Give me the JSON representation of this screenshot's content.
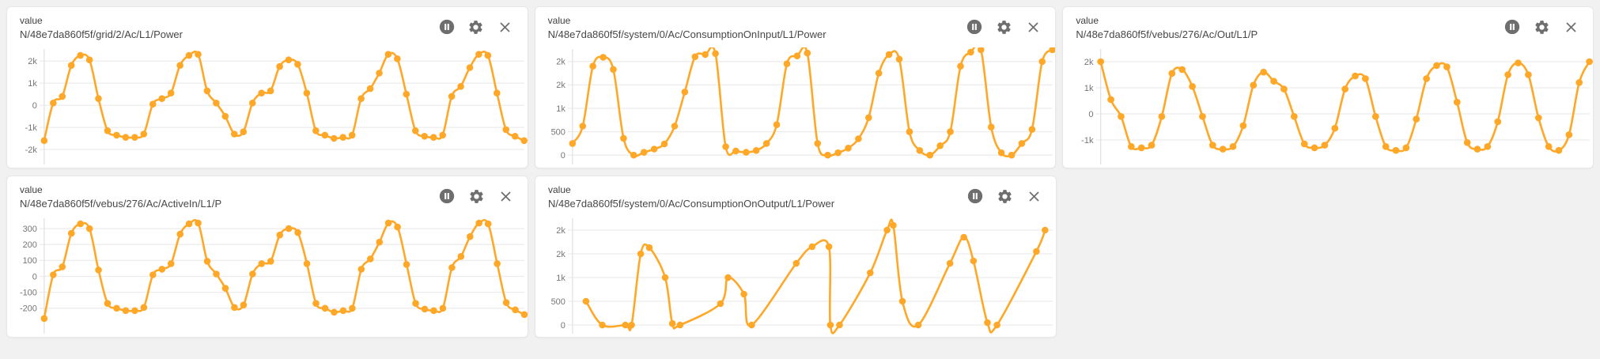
{
  "page": {
    "background": "#f1f1f2"
  },
  "colors": {
    "line": "#FFA726",
    "point": "#FFA726",
    "grid": "#ececec",
    "axis": "#e2e2e4",
    "tick_label": "#757575",
    "icon": "#6e6e6e",
    "card_bg": "#ffffff",
    "card_border": "#e7e7e8"
  },
  "icons": {
    "pause_label": "pause",
    "settings_label": "settings",
    "close_label": "close"
  },
  "panels": [
    {
      "title": "value",
      "topic": "N/48e7da860f5f/grid/2/Ac/L1/Power"
    },
    {
      "title": "value",
      "topic": "N/48e7da860f5f/system/0/Ac/ConsumptionOnInput/L1/Power"
    },
    {
      "title": "value",
      "topic": "N/48e7da860f5f/vebus/276/Ac/Out/L1/P"
    },
    {
      "title": "value",
      "topic": "N/48e7da860f5f/vebus/276/Ac/ActiveIn/L1/P"
    },
    {
      "title": "value",
      "topic": "N/48e7da860f5f/system/0/Ac/ConsumptionOnOutput/L1/Power"
    }
  ],
  "chart_data": [
    {
      "type": "line",
      "title": "value",
      "series_name": "N/48e7da860f5f/grid/2/Ac/L1/Power",
      "ylim": [
        -2820,
        2610
      ],
      "grid": true,
      "legend_position": "none",
      "yticks": [
        {
          "v": 2000,
          "label": "2k"
        },
        {
          "v": 1000,
          "label": "1k"
        },
        {
          "v": 0,
          "label": "0"
        },
        {
          "v": -1000,
          "label": "-1k"
        },
        {
          "v": -2000,
          "label": "-2k"
        }
      ],
      "values": [
        -1600,
        100,
        400,
        1800,
        2250,
        2050,
        300,
        -1150,
        -1350,
        -1450,
        -1450,
        -1300,
        50,
        300,
        550,
        1800,
        2250,
        2300,
        650,
        100,
        -500,
        -1300,
        -1200,
        100,
        550,
        650,
        1750,
        2050,
        1850,
        550,
        -1150,
        -1350,
        -1500,
        -1450,
        -1350,
        300,
        750,
        1450,
        2300,
        2100,
        500,
        -1150,
        -1400,
        -1450,
        -1350,
        400,
        850,
        1700,
        2300,
        2250,
        550,
        -1100,
        -1400,
        -1600
      ]
    },
    {
      "type": "line",
      "title": "value",
      "series_name": "N/48e7da860f5f/system/0/Ac/ConsumptionOnInput/L1/Power",
      "ylim": [
        -267,
        2300
      ],
      "grid": true,
      "legend_position": "none",
      "yticks": [
        {
          "v": 2000,
          "label": "2k"
        },
        {
          "v": 1500,
          "label": "2k"
        },
        {
          "v": 1000,
          "label": "1k"
        },
        {
          "v": 500,
          "label": "500"
        },
        {
          "v": 0,
          "label": "0"
        }
      ],
      "values": [
        250,
        620,
        1900,
        2090,
        1830,
        360,
        0,
        60,
        130,
        240,
        620,
        1350,
        2100,
        2150,
        2170,
        180,
        90,
        60,
        100,
        250,
        650,
        1950,
        2120,
        2180,
        250,
        0,
        50,
        150,
        350,
        800,
        1750,
        2150,
        2050,
        500,
        100,
        0,
        200,
        500,
        1900,
        2200,
        2250,
        600,
        50,
        0,
        250,
        550,
        2000,
        2250
      ]
    },
    {
      "type": "line",
      "title": "value",
      "series_name": "N/48e7da860f5f/vebus/276/Ac/Out/L1/P",
      "ylim": [
        -2060,
        2545
      ],
      "grid": true,
      "legend_position": "none",
      "yticks": [
        {
          "v": 2000,
          "label": "2k"
        },
        {
          "v": 1000,
          "label": "1k"
        },
        {
          "v": 0,
          "label": "0"
        },
        {
          "v": -1000,
          "label": "-1k"
        }
      ],
      "values": [
        2000,
        550,
        -100,
        -1250,
        -1300,
        -1200,
        -100,
        1550,
        1700,
        1050,
        -100,
        -1200,
        -1350,
        -1250,
        -450,
        1100,
        1600,
        1250,
        950,
        -100,
        -1150,
        -1300,
        -1200,
        -550,
        950,
        1450,
        1350,
        -100,
        -1250,
        -1400,
        -1300,
        -200,
        1350,
        1850,
        1800,
        450,
        -1100,
        -1350,
        -1250,
        -300,
        1500,
        1950,
        1500,
        -150,
        -1250,
        -1400,
        -800,
        1200,
        2000
      ]
    },
    {
      "type": "line",
      "title": "value",
      "series_name": "N/48e7da860f5f/vebus/276/Ac/ActiveIn/L1/P",
      "ylim": [
        -380,
        375
      ],
      "grid": true,
      "legend_position": "none",
      "yticks": [
        {
          "v": 300,
          "label": "300"
        },
        {
          "v": 200,
          "label": "200"
        },
        {
          "v": 100,
          "label": "100"
        },
        {
          "v": 0,
          "label": "0"
        },
        {
          "v": -100,
          "label": "-100"
        },
        {
          "v": -200,
          "label": "-200"
        }
      ],
      "values": [
        -265,
        10,
        60,
        270,
        330,
        300,
        40,
        -170,
        -200,
        -215,
        -215,
        -195,
        10,
        45,
        80,
        265,
        330,
        335,
        95,
        15,
        -75,
        -195,
        -180,
        15,
        80,
        95,
        260,
        300,
        275,
        80,
        -170,
        -200,
        -225,
        -215,
        -200,
        45,
        110,
        215,
        335,
        310,
        75,
        -170,
        -205,
        -215,
        -200,
        55,
        125,
        250,
        335,
        330,
        80,
        -165,
        -210,
        -240
      ]
    },
    {
      "type": "line",
      "title": "value",
      "series_name": "N/48e7da860f5f/system/0/Ac/ConsumptionOnOutput/L1/Power",
      "ylim": [
        -250,
        2283
      ],
      "grid": true,
      "legend_position": "none",
      "yticks": [
        {
          "v": 2000,
          "label": "2k"
        },
        {
          "v": 1500,
          "label": "2k"
        },
        {
          "v": 1000,
          "label": "1k"
        },
        {
          "v": 500,
          "label": "500"
        },
        {
          "v": 0,
          "label": "0"
        }
      ],
      "x": [
        2.8,
        6.2,
        11.0,
        12.3,
        14.2,
        16.0,
        19.3,
        20.8,
        22.4,
        30.8,
        32.4,
        35.7,
        37.3,
        46.6,
        49.9,
        53.4,
        53.7,
        55.6,
        62.0,
        65.5,
        66.8,
        68.7,
        72.0,
        78.6,
        81.5,
        83.5,
        86.4,
        88.4,
        96.6,
        98.4
      ],
      "values": [
        500,
        0,
        0,
        0,
        1500,
        1630,
        1000,
        30,
        0,
        450,
        1000,
        650,
        0,
        1300,
        1650,
        1650,
        0,
        0,
        1100,
        2000,
        2100,
        500,
        0,
        1300,
        1850,
        1350,
        50,
        0,
        1550,
        2000
      ]
    }
  ]
}
